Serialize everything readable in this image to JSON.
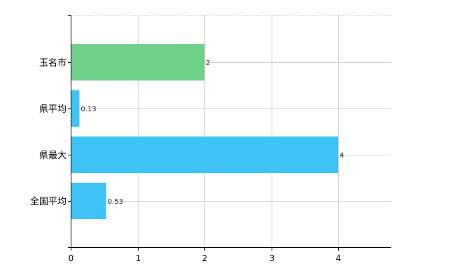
{
  "chart_data": {
    "type": "bar",
    "orientation": "horizontal",
    "categories": [
      "玉名市",
      "県平均",
      "県最大",
      "全国平均"
    ],
    "values": [
      2,
      0.13,
      4,
      0.53
    ],
    "data_labels": [
      "2",
      "0.13",
      "4",
      "0.53"
    ],
    "colors": [
      "#6fd18a",
      "#3dc3f5",
      "#3dc3f5",
      "#3dc3f5"
    ],
    "x_ticks": [
      "0",
      "1",
      "2",
      "3",
      "4"
    ],
    "xlim": [
      0,
      4.8
    ],
    "grid": true,
    "title": "",
    "xlabel": "",
    "ylabel": ""
  }
}
